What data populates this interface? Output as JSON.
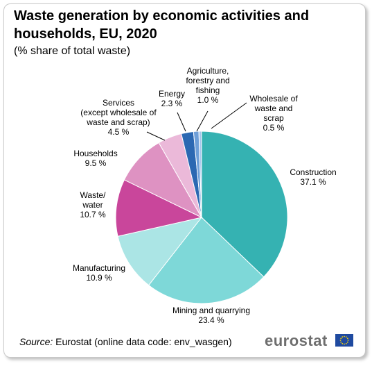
{
  "title": "Waste generation by economic activities and households, EU, 2020",
  "subtitle": "(% share of total waste)",
  "footer": {
    "source_label": "Source:",
    "source_text": " Eurostat (online data code: env_wasgen)",
    "brand": "eurostat"
  },
  "icons": {
    "flag": "eu-flag-icon"
  },
  "chart_data": {
    "type": "pie",
    "start_angle_deg": 0,
    "direction": "clockwise",
    "slices": [
      {
        "label_lines": [
          "Construction",
          "37.1 %"
        ],
        "value": 37.1,
        "color": "#35b2b2"
      },
      {
        "label_lines": [
          "Mining and quarrying",
          "23.4 %"
        ],
        "value": 23.4,
        "color": "#7ed8d8"
      },
      {
        "label_lines": [
          "Manufacturing",
          "10.9 %"
        ],
        "value": 10.9,
        "color": "#abe5e5"
      },
      {
        "label_lines": [
          "Waste/",
          "water",
          "10.7 %"
        ],
        "value": 10.7,
        "color": "#c9469b"
      },
      {
        "label_lines": [
          "Households",
          "9.5 %"
        ],
        "value": 9.5,
        "color": "#de92c2"
      },
      {
        "label_lines": [
          "Services",
          "(except wholesale of",
          "waste and scrap)",
          "4.5 %"
        ],
        "value": 4.5,
        "color": "#ebb9d9"
      },
      {
        "label_lines": [
          "Energy",
          "2.3 %"
        ],
        "value": 2.3,
        "color": "#2b68b2"
      },
      {
        "label_lines": [
          "Agriculture,",
          "forestry and",
          "fishing",
          "1.0 %"
        ],
        "value": 1.0,
        "color": "#6e9fd8"
      },
      {
        "label_lines": [
          "Wholesale of",
          "waste and",
          "scrap",
          "0.5 %"
        ],
        "value": 0.5,
        "color": "#a7c6ec"
      }
    ]
  }
}
